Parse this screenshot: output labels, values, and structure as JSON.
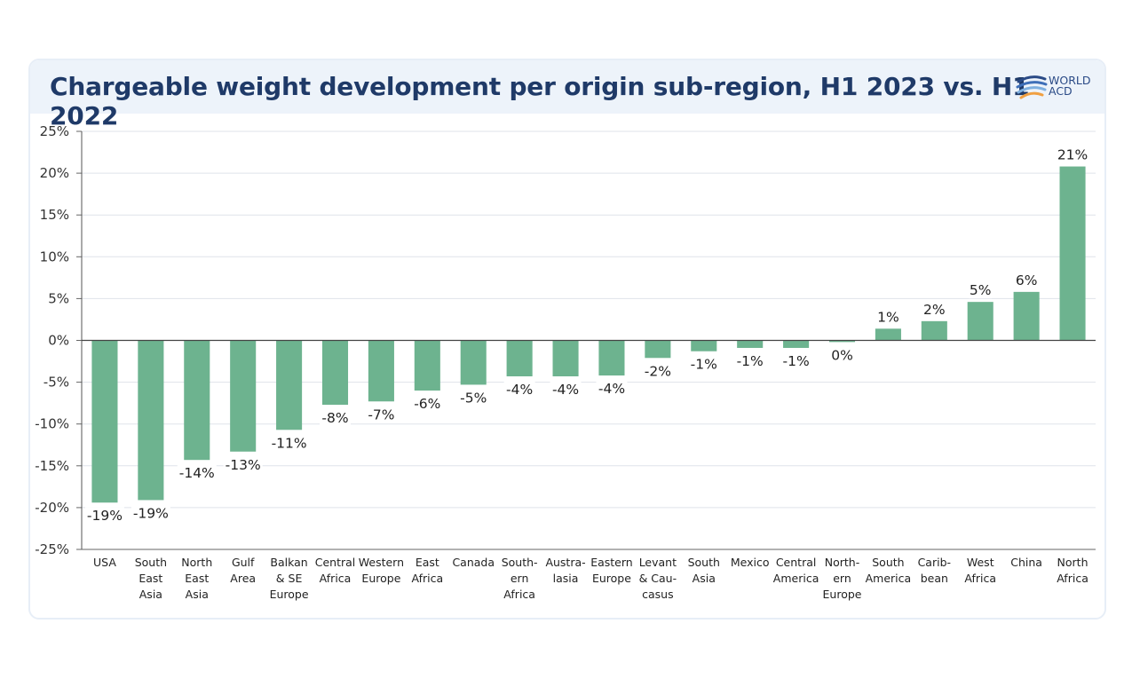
{
  "header": {
    "title": "Chargeable weight development per origin sub-region, H1 2023 vs. H1 2022",
    "logo_line1": "WORLD",
    "logo_line2": "ACD"
  },
  "colors": {
    "bar": "#6db38f",
    "title": "#1f3a68",
    "header_bg": "#edf3fa",
    "grid": "#dfe3ea",
    "logo_blue": "#2a4a86",
    "logo_orange": "#f0a042"
  },
  "chart_data": {
    "type": "bar",
    "title": "Chargeable weight development per origin sub-region, H1 2023 vs. H1 2022",
    "xlabel": "",
    "ylabel": "",
    "ylim": [
      -25,
      25
    ],
    "yticks": [
      25,
      20,
      15,
      10,
      5,
      0,
      -5,
      -10,
      -15,
      -20,
      -25
    ],
    "ytick_labels": [
      "25%",
      "20%",
      "15%",
      "10%",
      "5%",
      "0%",
      "-5%",
      "-10%",
      "-15%",
      "-20%",
      "-25%"
    ],
    "grid": true,
    "legend": "none",
    "categories": [
      [
        "USA"
      ],
      [
        "South",
        "East",
        "Asia"
      ],
      [
        "North",
        "East",
        "Asia"
      ],
      [
        "Gulf",
        "Area"
      ],
      [
        "Balkan",
        "& SE",
        "Europe"
      ],
      [
        "Central",
        "Africa"
      ],
      [
        "Western",
        "Europe"
      ],
      [
        "East",
        "Africa"
      ],
      [
        "Canada"
      ],
      [
        "South-",
        "ern",
        "Africa"
      ],
      [
        "Austra-",
        "lasia"
      ],
      [
        "Eastern",
        "Europe"
      ],
      [
        "Levant",
        "& Cau-",
        "casus"
      ],
      [
        "South",
        "Asia"
      ],
      [
        "Mexico"
      ],
      [
        "Central",
        "America"
      ],
      [
        "North-",
        "ern",
        "Europe"
      ],
      [
        "South",
        "America"
      ],
      [
        "Carib-",
        "bean"
      ],
      [
        "West",
        "Africa"
      ],
      [
        "China"
      ],
      [
        "North",
        "Africa"
      ]
    ],
    "values": [
      -19.4,
      -19.1,
      -14.3,
      -13.3,
      -10.7,
      -7.7,
      -7.3,
      -6.0,
      -5.3,
      -4.3,
      -4.3,
      -4.2,
      -2.1,
      -1.3,
      -0.9,
      -0.9,
      -0.2,
      1.4,
      2.3,
      4.6,
      5.8,
      20.8
    ],
    "data_labels": [
      "-19%",
      "-19%",
      "-14%",
      "-13%",
      "-11%",
      "-8%",
      "-7%",
      "-6%",
      "-5%",
      "-4%",
      "-4%",
      "-4%",
      "-2%",
      "-1%",
      "-1%",
      "-1%",
      "0%",
      "1%",
      "2%",
      "5%",
      "6%",
      "21%"
    ]
  }
}
